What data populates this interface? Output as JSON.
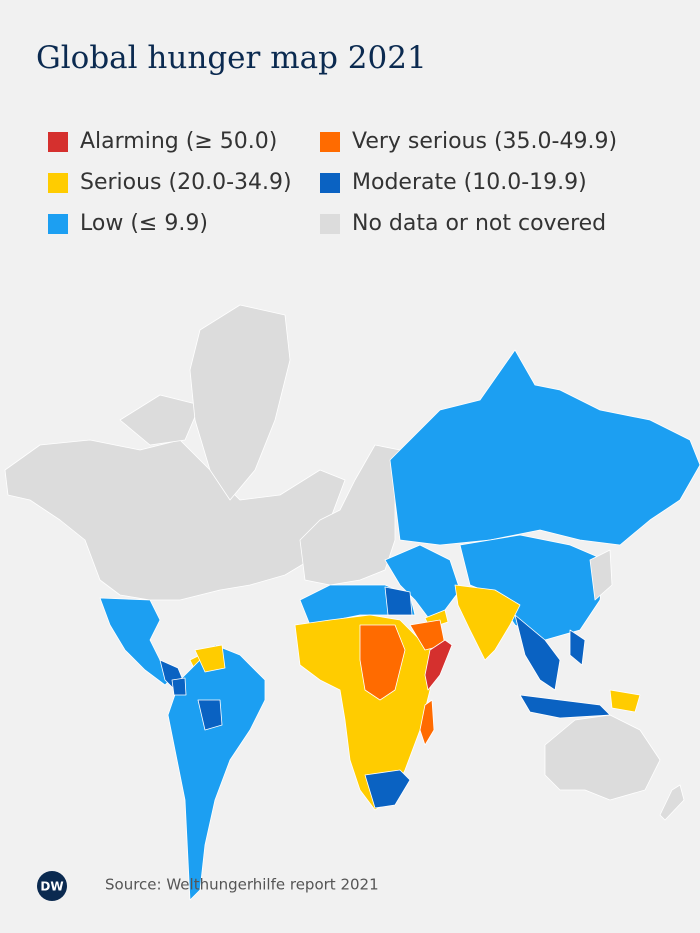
{
  "header": {
    "title": "Global hunger map 2021"
  },
  "legend": [
    {
      "label": "Alarming (≥ 50.0)",
      "color": "#d5302e"
    },
    {
      "label": "Very serious (35.0-49.9)",
      "color": "#ff6b00"
    },
    {
      "label": "Serious (20.0-34.9)",
      "color": "#ffcc00"
    },
    {
      "label": "Moderate (10.0-19.9)",
      "color": "#0a62c2"
    },
    {
      "label": "Low (≤ 9.9)",
      "color": "#1c9ff2"
    },
    {
      "label": "No data or not covered",
      "color": "#dcdcdc"
    }
  ],
  "footer": {
    "logo": "DW",
    "source": "Source: Welthungerhilfe report 2021"
  }
}
